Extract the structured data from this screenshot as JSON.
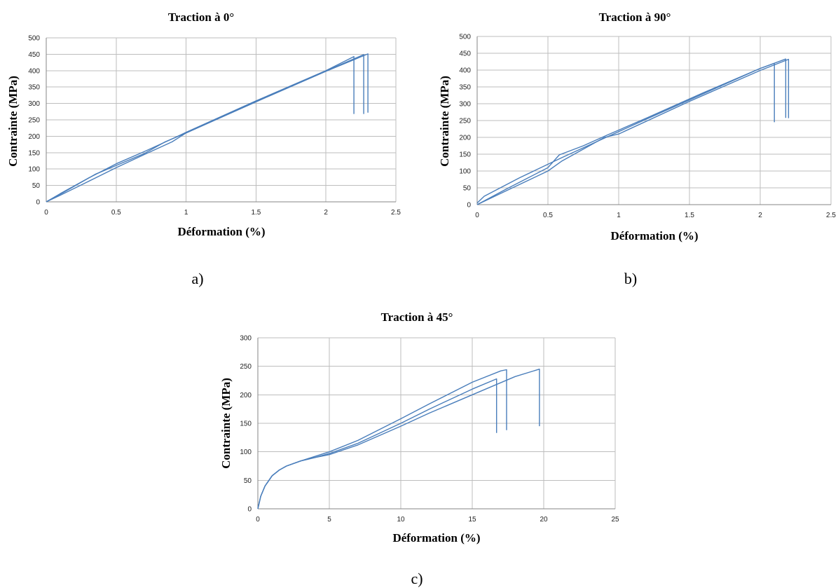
{
  "colors": {
    "series": "#4a7ebb",
    "grid": "#bdbdbd"
  },
  "chart_data": [
    {
      "type": "line",
      "title": "Traction à 0°",
      "xlabel": "Déformation (%)",
      "ylabel": "Contrainte (MPa)",
      "panel_label": "a)",
      "xlim": [
        0,
        2.5
      ],
      "ylim": [
        0,
        500
      ],
      "xticks": [
        0,
        0.5,
        1,
        1.5,
        2,
        2.5
      ],
      "xtick_labels": [
        "0",
        "0.5",
        "1",
        "1.5",
        "2",
        "2.5"
      ],
      "yticks": [
        0,
        50,
        100,
        150,
        200,
        250,
        300,
        350,
        400,
        450,
        500
      ],
      "ytick_labels": [
        "0",
        "50",
        "100",
        "150",
        "200",
        "250",
        "300",
        "350",
        "400",
        "450",
        "500"
      ],
      "grid": true,
      "series": [
        {
          "x": [
            0,
            0.1,
            0.3,
            0.5,
            0.7,
            0.88,
            1.0,
            1.5,
            2.0,
            2.2,
            2.2
          ],
          "y": [
            0,
            25,
            72,
            116,
            153,
            188,
            212,
            308,
            400,
            443,
            268
          ]
        },
        {
          "x": [
            0,
            0.12,
            0.35,
            0.5,
            0.7,
            0.85,
            1.0,
            1.5,
            2.0,
            2.27,
            2.27
          ],
          "y": [
            0,
            28,
            84,
            111,
            147,
            183,
            210,
            306,
            399,
            449,
            268
          ]
        },
        {
          "x": [
            0,
            0.1,
            0.3,
            0.5,
            0.7,
            0.9,
            1.0,
            1.5,
            2.0,
            2.3,
            2.3
          ],
          "y": [
            0,
            20,
            62,
            104,
            144,
            183,
            210,
            305,
            398,
            451,
            272
          ]
        }
      ]
    },
    {
      "type": "line",
      "title": "Traction à 90°",
      "xlabel": "Déformation (%)",
      "ylabel": "Contrainte (MPa)",
      "panel_label": "b)",
      "xlim": [
        0,
        2.5
      ],
      "ylim": [
        0,
        500
      ],
      "xticks": [
        0,
        0.5,
        1,
        1.5,
        2,
        2.5
      ],
      "xtick_labels": [
        "0",
        "0.5",
        "1",
        "1.5",
        "2",
        "2.5"
      ],
      "yticks": [
        0,
        50,
        100,
        150,
        200,
        250,
        300,
        350,
        400,
        450,
        500
      ],
      "ytick_labels": [
        "0",
        "50",
        "100",
        "150",
        "200",
        "250",
        "300",
        "350",
        "400",
        "450",
        "500"
      ],
      "grid": true,
      "series": [
        {
          "x": [
            0,
            0.05,
            0.3,
            0.6,
            0.9,
            1.2,
            1.6,
            2.0,
            2.1,
            2.1
          ],
          "y": [
            5,
            25,
            80,
            140,
            198,
            255,
            330,
            405,
            420,
            245
          ]
        },
        {
          "x": [
            0,
            0.2,
            0.5,
            0.58,
            0.75,
            0.92,
            1.2,
            1.6,
            2.0,
            2.18,
            2.18
          ],
          "y": [
            0,
            45,
            110,
            148,
            175,
            207,
            258,
            333,
            405,
            433,
            258
          ]
        },
        {
          "x": [
            0,
            0.2,
            0.5,
            0.6,
            0.9,
            1.0,
            1.5,
            2.0,
            2.2,
            2.2
          ],
          "y": [
            0,
            40,
            100,
            130,
            200,
            210,
            307,
            399,
            432,
            257
          ]
        }
      ]
    },
    {
      "type": "line",
      "title": "Traction à 45°",
      "xlabel": "Déformation (%)",
      "ylabel": "Contrainte (MPa)",
      "panel_label": "c)",
      "xlim": [
        0,
        25
      ],
      "ylim": [
        0,
        300
      ],
      "xticks": [
        0,
        5,
        10,
        15,
        20,
        25
      ],
      "xtick_labels": [
        "0",
        "5",
        "10",
        "15",
        "20",
        "25"
      ],
      "yticks": [
        0,
        50,
        100,
        150,
        200,
        250,
        300
      ],
      "ytick_labels": [
        "0",
        "50",
        "100",
        "150",
        "200",
        "250",
        "300"
      ],
      "grid": true,
      "series": [
        {
          "x": [
            0,
            0.2,
            0.5,
            1.0,
            1.5,
            2.0,
            3.0,
            4.0,
            5.0,
            7.0,
            10.0,
            12.0,
            15.0,
            16.7,
            16.7
          ],
          "y": [
            0,
            22,
            40,
            58,
            68,
            75,
            84,
            90,
            97,
            115,
            150,
            175,
            210,
            228,
            133
          ]
        },
        {
          "x": [
            0,
            0.2,
            0.5,
            1.0,
            1.5,
            2.0,
            3.0,
            4.0,
            5.0,
            7.0,
            10.0,
            12.0,
            15.0,
            17.0,
            17.4,
            17.4
          ],
          "y": [
            0,
            22,
            40,
            58,
            68,
            75,
            84,
            92,
            100,
            120,
            158,
            184,
            222,
            242,
            244,
            138
          ]
        },
        {
          "x": [
            0,
            0.2,
            0.5,
            1.0,
            1.5,
            2.0,
            3.0,
            4.0,
            5.0,
            7.0,
            10.0,
            12.0,
            15.0,
            18.0,
            19.7,
            19.7
          ],
          "y": [
            0,
            22,
            40,
            58,
            68,
            75,
            84,
            90,
            95,
            112,
            145,
            168,
            200,
            232,
            245,
            145
          ]
        }
      ]
    }
  ]
}
